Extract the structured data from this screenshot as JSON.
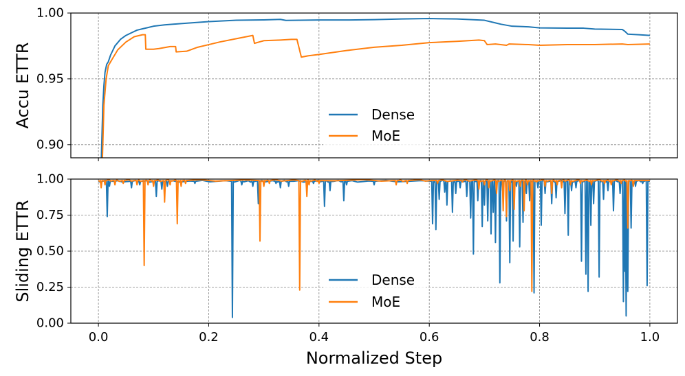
{
  "chart_data": [
    {
      "type": "line",
      "ylabel": "Accu ETTR",
      "ylim": [
        0.89,
        1.0
      ],
      "xlim": [
        -0.05,
        1.05
      ],
      "yticks": [
        "0.90",
        "0.95",
        "1.00"
      ],
      "ytick_values": [
        0.9,
        0.95,
        1.0
      ],
      "grid": true,
      "legend_position": "lower-center",
      "series": [
        {
          "name": "Dense",
          "color": "#1f77b4",
          "x": [
            0.005,
            0.008,
            0.01,
            0.012,
            0.015,
            0.018,
            0.022,
            0.03,
            0.04,
            0.05,
            0.06,
            0.07,
            0.08,
            0.09,
            0.1,
            0.12,
            0.15,
            0.2,
            0.25,
            0.3,
            0.33,
            0.34,
            0.4,
            0.45,
            0.5,
            0.55,
            0.6,
            0.65,
            0.7,
            0.72,
            0.73,
            0.75,
            0.78,
            0.8,
            0.85,
            0.88,
            0.9,
            0.95,
            0.955,
            0.96,
            0.98,
            1.0
          ],
          "values": [
            0.885,
            0.93,
            0.945,
            0.955,
            0.961,
            0.963,
            0.968,
            0.975,
            0.98,
            0.983,
            0.985,
            0.987,
            0.988,
            0.989,
            0.99,
            0.991,
            0.992,
            0.9935,
            0.9945,
            0.9948,
            0.9952,
            0.9944,
            0.9947,
            0.9947,
            0.995,
            0.9955,
            0.9958,
            0.9955,
            0.9945,
            0.9925,
            0.9915,
            0.99,
            0.9895,
            0.9887,
            0.9885,
            0.9885,
            0.9878,
            0.9875,
            0.986,
            0.984,
            0.9835,
            0.983
          ]
        },
        {
          "name": "MoE",
          "color": "#ff7f0e",
          "x": [
            0.007,
            0.01,
            0.014,
            0.018,
            0.025,
            0.035,
            0.05,
            0.065,
            0.08,
            0.085,
            0.086,
            0.1,
            0.11,
            0.13,
            0.14,
            0.141,
            0.16,
            0.18,
            0.2,
            0.22,
            0.25,
            0.28,
            0.283,
            0.3,
            0.33,
            0.35,
            0.36,
            0.368,
            0.38,
            0.4,
            0.45,
            0.5,
            0.55,
            0.6,
            0.65,
            0.69,
            0.7,
            0.705,
            0.72,
            0.74,
            0.745,
            0.78,
            0.8,
            0.85,
            0.9,
            0.95,
            0.96,
            1.0
          ],
          "values": [
            0.885,
            0.93,
            0.95,
            0.96,
            0.965,
            0.972,
            0.978,
            0.982,
            0.9835,
            0.9835,
            0.9725,
            0.9725,
            0.973,
            0.9745,
            0.9745,
            0.9705,
            0.971,
            0.974,
            0.976,
            0.978,
            0.9805,
            0.983,
            0.977,
            0.979,
            0.9795,
            0.98,
            0.98,
            0.9665,
            0.9675,
            0.9685,
            0.9715,
            0.974,
            0.9755,
            0.9775,
            0.9785,
            0.9795,
            0.979,
            0.976,
            0.9765,
            0.9755,
            0.9765,
            0.976,
            0.9755,
            0.976,
            0.976,
            0.9765,
            0.976,
            0.9765
          ]
        }
      ]
    },
    {
      "type": "line",
      "ylabel": "Sliding ETTR",
      "xlabel": "Normalized Step",
      "ylim": [
        0.0,
        1.0
      ],
      "xlim": [
        -0.05,
        1.05
      ],
      "yticks": [
        "0.00",
        "0.25",
        "0.50",
        "0.75",
        "1.00"
      ],
      "ytick_values": [
        0.0,
        0.25,
        0.5,
        0.75,
        1.0
      ],
      "xticks": [
        "0.0",
        "0.2",
        "0.4",
        "0.6",
        "0.8",
        "1.0"
      ],
      "xtick_values": [
        0.0,
        0.2,
        0.4,
        0.6,
        0.8,
        1.0
      ],
      "grid": true,
      "legend_position": "lower-center",
      "series": [
        {
          "name": "Dense",
          "color": "#1f77b4",
          "baseline": 0.985,
          "dips": [
            [
              0.016,
              0.74
            ],
            [
              0.02,
              0.95
            ],
            [
              0.06,
              0.94
            ],
            [
              0.075,
              0.96
            ],
            [
              0.105,
              0.88
            ],
            [
              0.115,
              0.93
            ],
            [
              0.125,
              0.95
            ],
            [
              0.175,
              0.97
            ],
            [
              0.243,
              0.04
            ],
            [
              0.26,
              0.96
            ],
            [
              0.28,
              0.95
            ],
            [
              0.29,
              0.83
            ],
            [
              0.322,
              0.97
            ],
            [
              0.33,
              0.94
            ],
            [
              0.345,
              0.95
            ],
            [
              0.39,
              0.97
            ],
            [
              0.41,
              0.81
            ],
            [
              0.42,
              0.92
            ],
            [
              0.445,
              0.85
            ],
            [
              0.45,
              0.96
            ],
            [
              0.5,
              0.96
            ],
            [
              0.606,
              0.69
            ],
            [
              0.612,
              0.65
            ],
            [
              0.618,
              0.86
            ],
            [
              0.628,
              0.91
            ],
            [
              0.632,
              0.82
            ],
            [
              0.642,
              0.77
            ],
            [
              0.648,
              0.9
            ],
            [
              0.656,
              0.94
            ],
            [
              0.668,
              0.88
            ],
            [
              0.675,
              0.73
            ],
            [
              0.68,
              0.48
            ],
            [
              0.688,
              0.85
            ],
            [
              0.696,
              0.67
            ],
            [
              0.7,
              0.82
            ],
            [
              0.706,
              0.71
            ],
            [
              0.712,
              0.62
            ],
            [
              0.716,
              0.77
            ],
            [
              0.72,
              0.56
            ],
            [
              0.728,
              0.28
            ],
            [
              0.733,
              0.92
            ],
            [
              0.74,
              0.71
            ],
            [
              0.746,
              0.42
            ],
            [
              0.752,
              0.57
            ],
            [
              0.758,
              0.95
            ],
            [
              0.764,
              0.53
            ],
            [
              0.77,
              0.7
            ],
            [
              0.776,
              0.9
            ],
            [
              0.782,
              0.85
            ],
            [
              0.79,
              0.21
            ],
            [
              0.797,
              0.94
            ],
            [
              0.803,
              0.68
            ],
            [
              0.81,
              0.9
            ],
            [
              0.822,
              0.83
            ],
            [
              0.83,
              0.87
            ],
            [
              0.846,
              0.76
            ],
            [
              0.852,
              0.61
            ],
            [
              0.858,
              0.92
            ],
            [
              0.866,
              0.94
            ],
            [
              0.876,
              0.43
            ],
            [
              0.884,
              0.34
            ],
            [
              0.888,
              0.22
            ],
            [
              0.893,
              0.68
            ],
            [
              0.898,
              0.83
            ],
            [
              0.908,
              0.32
            ],
            [
              0.916,
              0.86
            ],
            [
              0.924,
              0.92
            ],
            [
              0.934,
              0.78
            ],
            [
              0.946,
              0.9
            ],
            [
              0.952,
              0.15
            ],
            [
              0.955,
              0.36
            ],
            [
              0.957,
              0.05
            ],
            [
              0.96,
              0.22
            ],
            [
              0.966,
              0.66
            ],
            [
              0.974,
              0.95
            ],
            [
              0.987,
              0.97
            ],
            [
              0.995,
              0.26
            ]
          ]
        },
        {
          "name": "MoE",
          "color": "#ff7f0e",
          "baseline": 0.99,
          "dips": [
            [
              0.005,
              0.94
            ],
            [
              0.012,
              0.96
            ],
            [
              0.03,
              0.96
            ],
            [
              0.045,
              0.97
            ],
            [
              0.07,
              0.96
            ],
            [
              0.083,
              0.4
            ],
            [
              0.09,
              0.96
            ],
            [
              0.1,
              0.95
            ],
            [
              0.12,
              0.84
            ],
            [
              0.13,
              0.96
            ],
            [
              0.143,
              0.69
            ],
            [
              0.15,
              0.95
            ],
            [
              0.158,
              0.97
            ],
            [
              0.293,
              0.57
            ],
            [
              0.3,
              0.95
            ],
            [
              0.31,
              0.97
            ],
            [
              0.365,
              0.23
            ],
            [
              0.378,
              0.88
            ],
            [
              0.382,
              0.96
            ],
            [
              0.4,
              0.97
            ],
            [
              0.54,
              0.96
            ],
            [
              0.56,
              0.97
            ],
            [
              0.615,
              0.97
            ],
            [
              0.66,
              0.98
            ],
            [
              0.69,
              0.93
            ],
            [
              0.7,
              0.96
            ],
            [
              0.708,
              0.94
            ],
            [
              0.722,
              0.9
            ],
            [
              0.734,
              0.78
            ],
            [
              0.74,
              0.74
            ],
            [
              0.746,
              0.92
            ],
            [
              0.754,
              0.79
            ],
            [
              0.765,
              0.95
            ],
            [
              0.772,
              0.78
            ],
            [
              0.778,
              0.96
            ],
            [
              0.786,
              0.22
            ],
            [
              0.795,
              0.98
            ],
            [
              0.81,
              0.95
            ],
            [
              0.822,
              0.9
            ],
            [
              0.832,
              0.96
            ],
            [
              0.84,
              0.94
            ],
            [
              0.856,
              0.96
            ],
            [
              0.874,
              0.97
            ],
            [
              0.894,
              0.96
            ],
            [
              0.918,
              0.97
            ],
            [
              0.93,
              0.96
            ],
            [
              0.948,
              0.97
            ],
            [
              0.96,
              0.66
            ],
            [
              0.97,
              0.95
            ]
          ]
        }
      ]
    }
  ]
}
